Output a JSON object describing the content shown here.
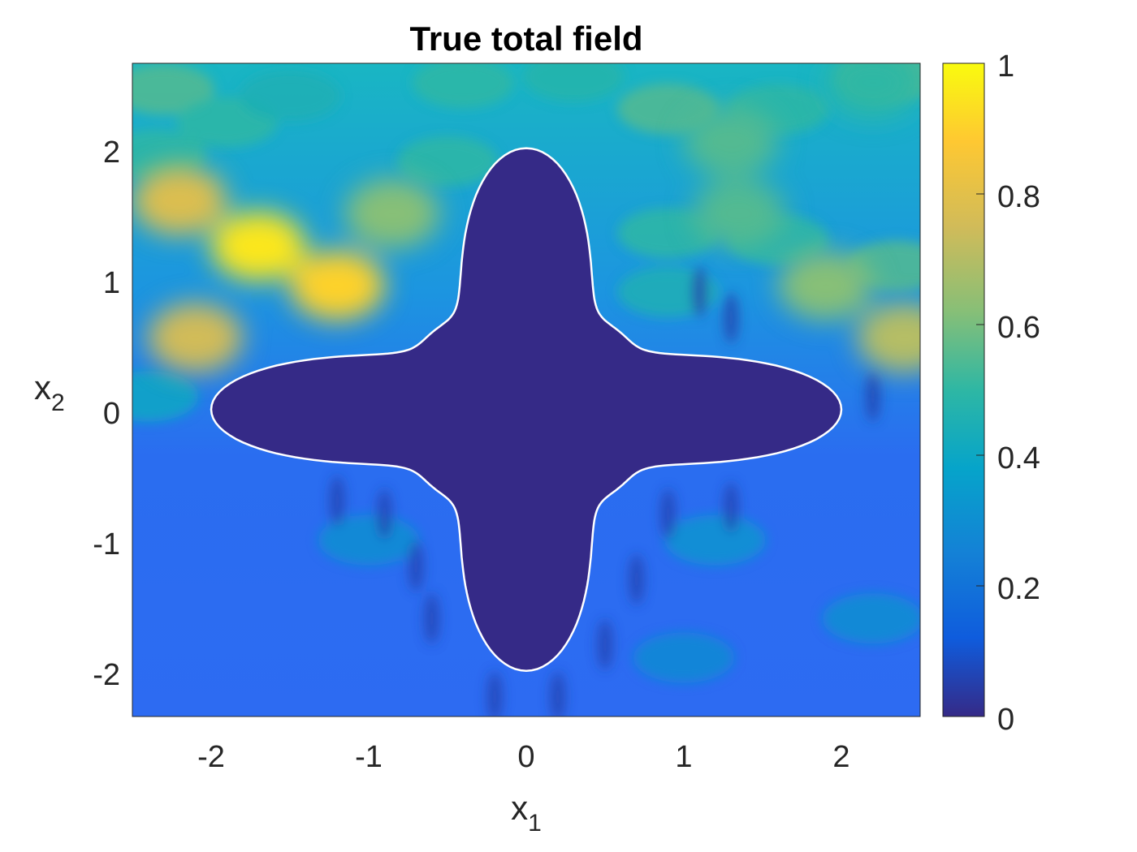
{
  "chart_data": {
    "type": "heatmap",
    "title": "True total field",
    "xlabel": {
      "base": "x",
      "sub": "1"
    },
    "ylabel": {
      "base": "x",
      "sub": "2"
    },
    "xlim": [
      -2.5,
      2.5
    ],
    "ylim": [
      -2.35,
      2.65
    ],
    "x_ticks": [
      -2,
      -1,
      0,
      1,
      2
    ],
    "x_tick_labels": [
      "-2",
      "-1",
      "0",
      "1",
      "2"
    ],
    "y_ticks": [
      -2,
      -1,
      0,
      1,
      2
    ],
    "y_tick_labels": [
      "-2",
      "-1",
      "0",
      "1",
      "2"
    ],
    "colorbar": {
      "range": [
        0,
        1
      ],
      "ticks": [
        0,
        0.2,
        0.4,
        0.6,
        0.8,
        1
      ],
      "tick_labels": [
        "0",
        "0.2",
        "0.4",
        "0.6",
        "0.8",
        "1"
      ],
      "colormap": "parula"
    },
    "obstacle": {
      "shape": "four-leaf clover",
      "center": [
        0,
        0
      ],
      "half_extent_x": 2,
      "half_extent_y": 2,
      "field_value": 0,
      "outline_color": "#ffffff"
    },
    "features": {
      "bright_lobes": [
        {
          "x": -1.7,
          "y": 1.25,
          "value": 0.95
        },
        {
          "x": -1.2,
          "y": 0.95,
          "value": 0.9
        },
        {
          "x": -2.2,
          "y": 1.6,
          "value": 0.78
        },
        {
          "x": -2.1,
          "y": 0.55,
          "value": 0.75
        },
        {
          "x": -0.85,
          "y": 1.5,
          "value": 0.62
        },
        {
          "x": 2.4,
          "y": 0.55,
          "value": 0.7
        },
        {
          "x": 1.9,
          "y": 0.95,
          "value": 0.62
        },
        {
          "x": 1.35,
          "y": 1.5,
          "value": 0.55
        },
        {
          "x": 1.3,
          "y": 2.05,
          "value": 0.55
        },
        {
          "x": 2.2,
          "y": 2.5,
          "value": 0.5
        }
      ],
      "background_level_top": 0.4,
      "background_level_bottom": 0.2
    }
  }
}
